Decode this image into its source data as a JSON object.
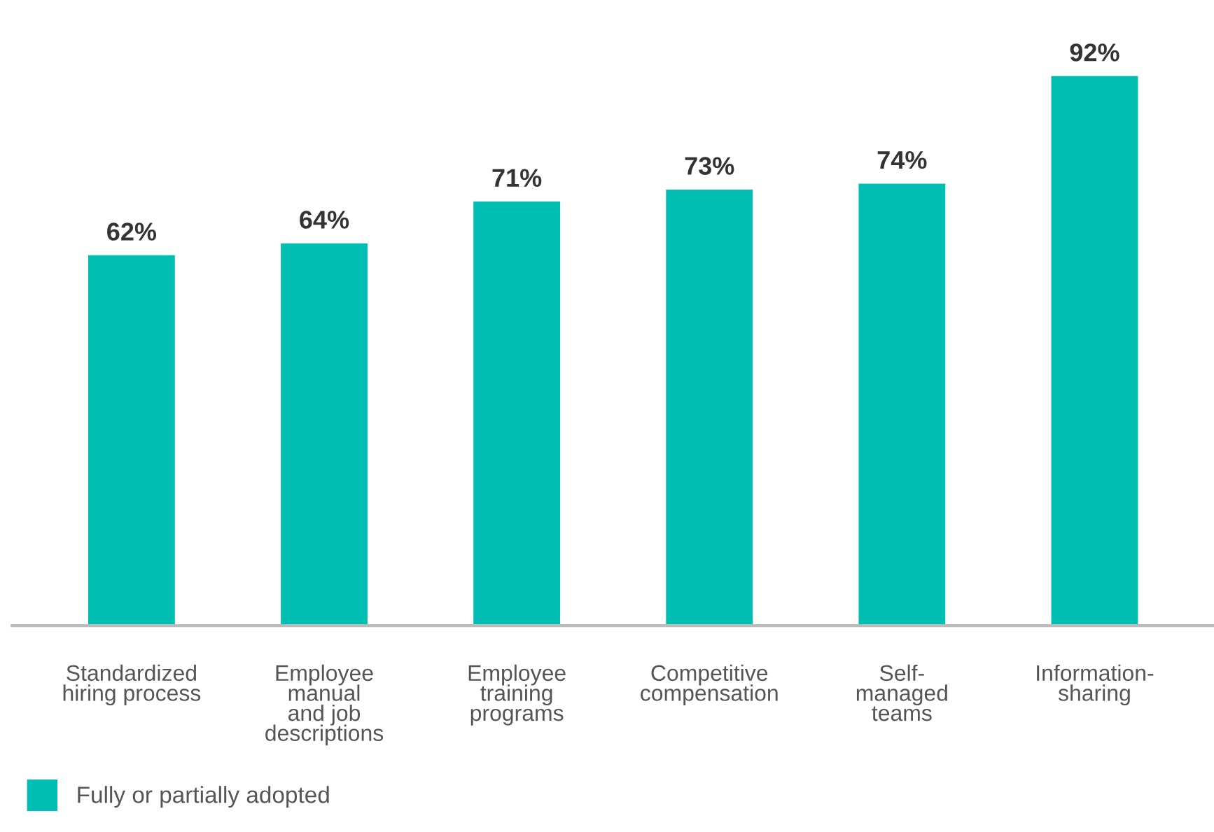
{
  "chart_data": {
    "type": "bar",
    "categories": [
      "Standardized\nhiring process",
      "Employee\nmanual\nand job\ndescriptions",
      "Employee\ntraining\nprograms",
      "Competitive\ncompensation",
      "Self-\nmanaged\nteams",
      "Information-\nsharing"
    ],
    "series": [
      {
        "name": "Fully or partially adopted",
        "color": "#00bfb2",
        "values": [
          62,
          64,
          71,
          73,
          74,
          92
        ],
        "value_labels": [
          "62%",
          "64%",
          "71%",
          "73%",
          "74%",
          "92%"
        ]
      }
    ],
    "legend": "bottom left",
    "grid": false
  }
}
